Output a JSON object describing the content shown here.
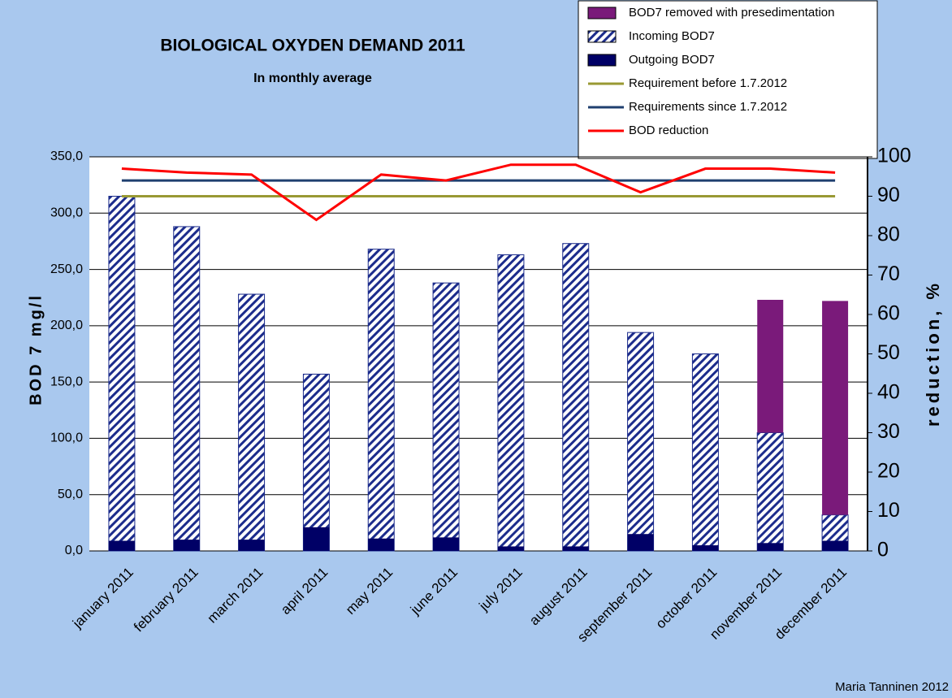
{
  "chart_data": {
    "type": "bar",
    "title": "BIOLOGICAL OXYDEN DEMAND 2011",
    "subtitle": "In monthly average",
    "y_label": "BOD 7 mg/l",
    "y2_label": "reduction, %",
    "footer": "Maria Tanninen 2012",
    "categories": [
      "january 2011",
      "february 2011",
      "march 2011",
      "april 2011",
      "may 2011",
      "june 2011",
      "july 2011",
      "august 2011",
      "september 2011",
      "october 2011",
      "november 2011",
      "december 2011"
    ],
    "series": [
      {
        "name": "BOD7 removed with presedimentation",
        "type": "bar",
        "color": "#7a1a7a",
        "values": [
          null,
          null,
          null,
          null,
          null,
          null,
          null,
          null,
          null,
          null,
          118,
          190
        ]
      },
      {
        "name": "Incoming BOD7",
        "type": "bar",
        "color": "#1c2c8c",
        "values": [
          315,
          288,
          228,
          157,
          268,
          238,
          263,
          273,
          194,
          175,
          105,
          32
        ]
      },
      {
        "name": "Outgoing BOD7",
        "type": "bar",
        "color": "#000066",
        "values": [
          9,
          10,
          10,
          21,
          11,
          12,
          4,
          4,
          15,
          5,
          7,
          9
        ]
      },
      {
        "name": "Requirement before 1.7.2012",
        "type": "line",
        "axis": "y2",
        "color": "#999933",
        "values": [
          90,
          90,
          90,
          90,
          90,
          90,
          90,
          90,
          90,
          90,
          90,
          90
        ]
      },
      {
        "name": "Requirements since 1.7.2012",
        "type": "line",
        "axis": "y2",
        "color": "#1f3f6f",
        "values": [
          94,
          94,
          94,
          94,
          94,
          94,
          94,
          94,
          94,
          94,
          94,
          94
        ]
      },
      {
        "name": "BOD reduction",
        "type": "line",
        "axis": "y2",
        "color": "#ff0000",
        "values": [
          97,
          96,
          95.5,
          84,
          95.5,
          94,
          98,
          98,
          91,
          97,
          97,
          96
        ]
      }
    ],
    "ylim": [
      0,
      350
    ],
    "yticks": [
      {
        "value": 0,
        "label": "0,0"
      },
      {
        "value": 50,
        "label": "50,0"
      },
      {
        "value": 100,
        "label": "100,0"
      },
      {
        "value": 150,
        "label": "150,0"
      },
      {
        "value": 200,
        "label": "200,0"
      },
      {
        "value": 250,
        "label": "250,0"
      },
      {
        "value": 300,
        "label": "300,0"
      },
      {
        "value": 350,
        "label": "350,0"
      }
    ],
    "y2lim": [
      0,
      100
    ],
    "y2ticks": [
      0,
      10,
      20,
      30,
      40,
      50,
      60,
      70,
      80,
      90,
      100
    ],
    "grid": true
  }
}
